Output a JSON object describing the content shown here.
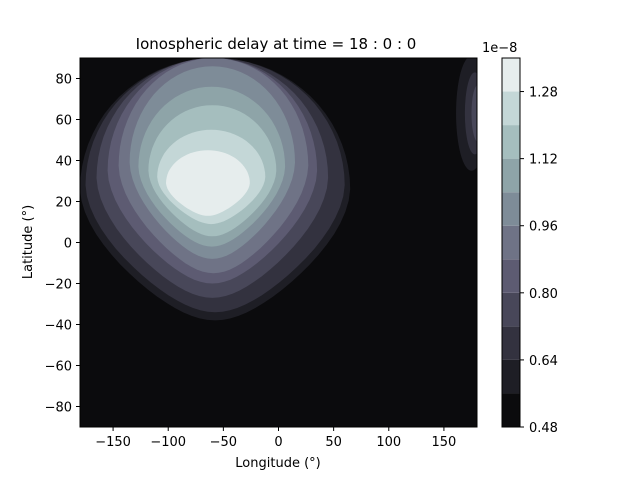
{
  "chart_data": {
    "type": "heatmap",
    "title": "Ionospheric delay at time = 18 : 0 : 0",
    "xlabel": "Longitude (°)",
    "ylabel": "Latitude (°)",
    "xlim": [
      -180,
      180
    ],
    "ylim": [
      -90,
      90
    ],
    "x_ticks": [
      -150,
      -100,
      -50,
      0,
      50,
      100,
      150
    ],
    "x_tick_labels": [
      "−150",
      "−100",
      "−50",
      "0",
      "50",
      "100",
      "150"
    ],
    "y_ticks": [
      -80,
      -60,
      -40,
      -20,
      0,
      20,
      40,
      60,
      80
    ],
    "y_tick_labels": [
      "−80",
      "−60",
      "−40",
      "−20",
      "0",
      "20",
      "40",
      "60",
      "80"
    ],
    "colormap": "bone",
    "colorbar": {
      "range": [
        0.48,
        1.36
      ],
      "levels": [
        0.48,
        0.56,
        0.64,
        0.72,
        0.8,
        0.88,
        0.96,
        1.04,
        1.12,
        1.2,
        1.28,
        1.36
      ],
      "ticks": [
        0.48,
        0.64,
        0.8,
        0.96,
        1.12,
        1.28
      ],
      "tick_labels": [
        "0.48",
        "0.64",
        "0.80",
        "0.96",
        "1.12",
        "1.28"
      ],
      "offset_label": "1e−8"
    },
    "field": {
      "peak": {
        "lon": -60,
        "lat": 25,
        "value": 1.33
      },
      "background_value": 0.5
    },
    "colors": [
      "#0b0b0d",
      "#1e1e25",
      "#33323f",
      "#484759",
      "#5d5b72",
      "#6f7386",
      "#7e8c98",
      "#8ea4a8",
      "#a5bebe",
      "#c4d7d7",
      "#e6eded"
    ]
  }
}
